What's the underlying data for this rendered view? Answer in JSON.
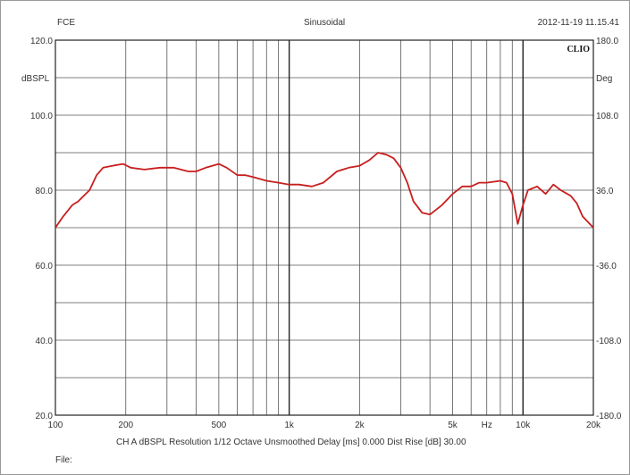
{
  "header": {
    "left": "FCE",
    "center": "Sinusoidal",
    "right": "2012-11-19 11.15.41"
  },
  "brand": "CLIO",
  "footer": {
    "settings": "CH A  dBSPL  Resolution 1/12 Octave  Unsmoothed  Delay [ms] 0.000  Dist Rise [dB] 30.00",
    "file_label": "File:"
  },
  "chart_data": {
    "type": "line",
    "xscale": "log",
    "xlim": [
      100,
      20000
    ],
    "ylim": [
      20,
      120
    ],
    "ylim_right": [
      -180,
      180
    ],
    "ylabel": "dBSPL",
    "ylabel_right": "Deg",
    "xlabel": "Hz",
    "grid": true,
    "line_color": "#c81e1e",
    "grid_color": "#555555",
    "x_ticks": [
      {
        "value": 100,
        "label": "100"
      },
      {
        "value": 200,
        "label": "200"
      },
      {
        "value": 500,
        "label": "500"
      },
      {
        "value": 1000,
        "label": "1k"
      },
      {
        "value": 2000,
        "label": "2k"
      },
      {
        "value": 5000,
        "label": "5k"
      },
      {
        "value": 10000,
        "label": "10k"
      },
      {
        "value": 20000,
        "label": "20k"
      }
    ],
    "y_ticks": [
      {
        "value": 120,
        "label": "120.0"
      },
      {
        "value": 100,
        "label": "100.0"
      },
      {
        "value": 80,
        "label": "80.0"
      },
      {
        "value": 60,
        "label": "60.0"
      },
      {
        "value": 40,
        "label": "40.0"
      },
      {
        "value": 20,
        "label": "20.0"
      }
    ],
    "y_ticks_right": [
      {
        "value": 180,
        "label": "180.0"
      },
      {
        "value": 108,
        "label": "108.0"
      },
      {
        "value": 36,
        "label": "36.0"
      },
      {
        "value": -36,
        "label": "-36.0"
      },
      {
        "value": -108,
        "label": "-108.0"
      },
      {
        "value": -180,
        "label": "-180.0"
      }
    ],
    "series": [
      {
        "x": [
          100,
          108,
          118,
          125,
          140,
          150,
          160,
          175,
          195,
          210,
          240,
          280,
          320,
          370,
          400,
          440,
          500,
          540,
          600,
          650,
          700,
          800,
          900,
          1000,
          1100,
          1250,
          1400,
          1600,
          1800,
          2000,
          2200,
          2400,
          2600,
          2800,
          3000,
          3200,
          3400,
          3700,
          4000,
          4500,
          5000,
          5500,
          6000,
          6500,
          7000,
          8000,
          8500,
          9000,
          9500,
          10000,
          10500,
          11500,
          12500,
          13500,
          14500,
          16000,
          17000,
          18000,
          20000
        ],
        "y": [
          70,
          73,
          76,
          77,
          80,
          84,
          86,
          86.5,
          87,
          86,
          85.5,
          86,
          86,
          85,
          85,
          86,
          87,
          86,
          84,
          84,
          83.5,
          82.5,
          82,
          81.5,
          81.5,
          81,
          82,
          85,
          86,
          86.5,
          88,
          90,
          89.5,
          88.5,
          86,
          82,
          77,
          74,
          73.5,
          76,
          79,
          81,
          81,
          82,
          82,
          82.5,
          82,
          79,
          71,
          76,
          80,
          81,
          79,
          81.5,
          80,
          78.5,
          76.5,
          73,
          70
        ]
      }
    ]
  }
}
